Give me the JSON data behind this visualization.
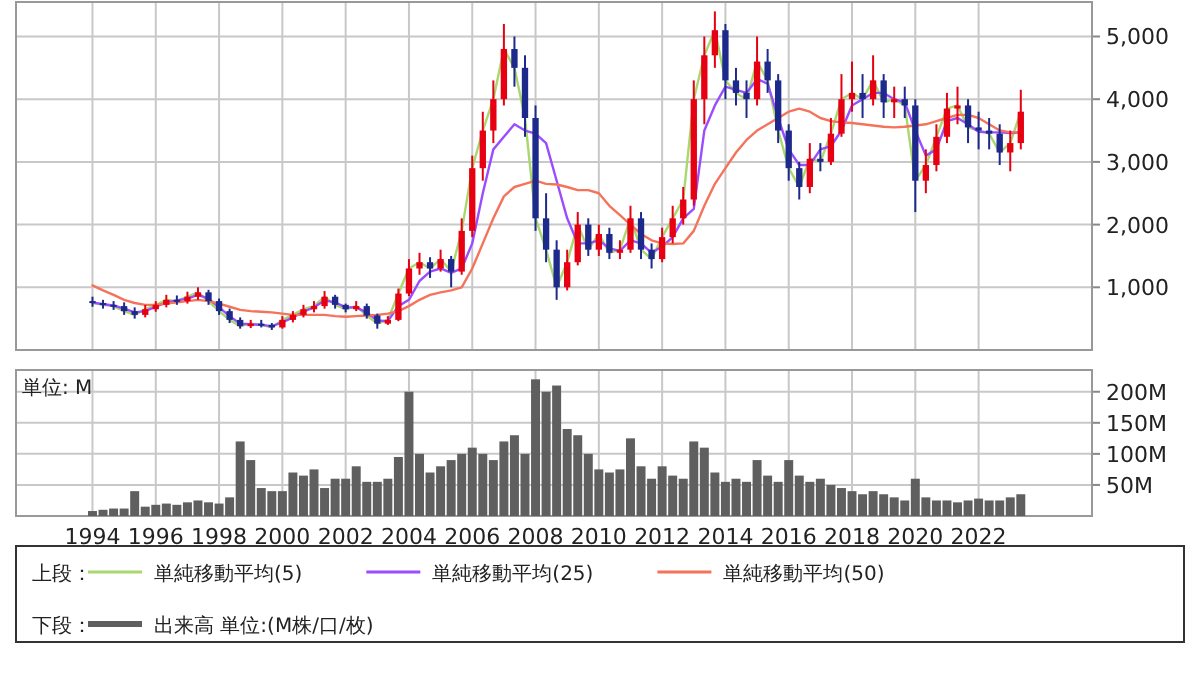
{
  "chart_data": [
    {
      "type": "candlestick",
      "x": [
        "1994-01",
        "1994-05",
        "1994-09",
        "1995-01",
        "1995-05",
        "1995-09",
        "1996-01",
        "1996-05",
        "1996-09",
        "1997-01",
        "1997-05",
        "1997-09",
        "1998-01",
        "1998-05",
        "1998-09",
        "1999-01",
        "1999-05",
        "1999-09",
        "2000-01",
        "2000-05",
        "2000-09",
        "2001-01",
        "2001-05",
        "2001-09",
        "2002-01",
        "2002-05",
        "2002-09",
        "2003-01",
        "2003-05",
        "2003-09",
        "2004-01",
        "2004-05",
        "2004-09",
        "2005-01",
        "2005-05",
        "2005-09",
        "2006-01",
        "2006-05",
        "2006-09",
        "2007-01",
        "2007-05",
        "2007-09",
        "2008-01",
        "2008-05",
        "2008-09",
        "2009-01",
        "2009-05",
        "2009-09",
        "2010-01",
        "2010-05",
        "2010-09",
        "2011-01",
        "2011-05",
        "2011-09",
        "2012-01",
        "2012-05",
        "2012-09",
        "2013-01",
        "2013-05",
        "2013-09",
        "2014-01",
        "2014-05",
        "2014-09",
        "2015-01",
        "2015-05",
        "2015-09",
        "2016-01",
        "2016-05",
        "2016-09",
        "2017-01",
        "2017-05",
        "2017-09",
        "2018-01",
        "2018-05",
        "2018-09",
        "2019-01",
        "2019-05",
        "2019-09",
        "2020-01",
        "2020-05",
        "2020-09",
        "2021-01",
        "2021-05",
        "2021-09",
        "2022-01",
        "2022-05",
        "2022-09",
        "2023-01",
        "2023-05"
      ],
      "ohlc": [
        [
          780,
          850,
          690,
          750
        ],
        [
          750,
          800,
          660,
          720
        ],
        [
          720,
          780,
          640,
          700
        ],
        [
          700,
          760,
          560,
          620
        ],
        [
          620,
          680,
          500,
          560
        ],
        [
          560,
          720,
          520,
          650
        ],
        [
          650,
          780,
          610,
          720
        ],
        [
          720,
          880,
          680,
          800
        ],
        [
          800,
          870,
          720,
          780
        ],
        [
          780,
          930,
          740,
          850
        ],
        [
          850,
          1000,
          800,
          920
        ],
        [
          920,
          960,
          720,
          780
        ],
        [
          780,
          820,
          560,
          620
        ],
        [
          620,
          660,
          430,
          480
        ],
        [
          480,
          520,
          340,
          380
        ],
        [
          380,
          480,
          350,
          420
        ],
        [
          420,
          480,
          360,
          400
        ],
        [
          400,
          430,
          320,
          360
        ],
        [
          360,
          540,
          340,
          480
        ],
        [
          480,
          620,
          440,
          560
        ],
        [
          560,
          720,
          520,
          650
        ],
        [
          650,
          780,
          600,
          700
        ],
        [
          700,
          940,
          660,
          850
        ],
        [
          850,
          880,
          660,
          720
        ],
        [
          720,
          740,
          600,
          650
        ],
        [
          650,
          780,
          620,
          700
        ],
        [
          700,
          740,
          500,
          550
        ],
        [
          550,
          580,
          340,
          420
        ],
        [
          420,
          540,
          400,
          480
        ],
        [
          480,
          980,
          460,
          900
        ],
        [
          900,
          1450,
          860,
          1300
        ],
        [
          1300,
          1550,
          1200,
          1400
        ],
        [
          1400,
          1480,
          1150,
          1300
        ],
        [
          1300,
          1600,
          1250,
          1450
        ],
        [
          1450,
          1500,
          1000,
          1250
        ],
        [
          1250,
          2100,
          1200,
          1900
        ],
        [
          1900,
          3100,
          1800,
          2900
        ],
        [
          2900,
          3800,
          2700,
          3500
        ],
        [
          3500,
          4300,
          3300,
          4000
        ],
        [
          4000,
          5200,
          3900,
          4800
        ],
        [
          4800,
          5000,
          4200,
          4500
        ],
        [
          4500,
          4700,
          3400,
          3700
        ],
        [
          3700,
          3900,
          1900,
          2100
        ],
        [
          2100,
          2500,
          1400,
          1600
        ],
        [
          1600,
          1750,
          800,
          1000
        ],
        [
          1000,
          1600,
          950,
          1400
        ],
        [
          1400,
          2200,
          1350,
          2000
        ],
        [
          2000,
          2100,
          1500,
          1600
        ],
        [
          1600,
          2000,
          1500,
          1850
        ],
        [
          1850,
          1950,
          1450,
          1550
        ],
        [
          1550,
          1750,
          1450,
          1600
        ],
        [
          1600,
          2300,
          1550,
          2100
        ],
        [
          2100,
          2200,
          1450,
          1600
        ],
        [
          1600,
          1700,
          1300,
          1450
        ],
        [
          1450,
          1950,
          1400,
          1800
        ],
        [
          1800,
          2300,
          1700,
          2100
        ],
        [
          2100,
          2600,
          2000,
          2400
        ],
        [
          2400,
          4300,
          2300,
          4000
        ],
        [
          4000,
          5000,
          3600,
          4700
        ],
        [
          4700,
          5400,
          4500,
          5100
        ],
        [
          5100,
          5200,
          4000,
          4300
        ],
        [
          4300,
          4500,
          3900,
          4100
        ],
        [
          4100,
          4300,
          3700,
          4000
        ],
        [
          4000,
          5000,
          3900,
          4600
        ],
        [
          4600,
          4800,
          4100,
          4300
        ],
        [
          4300,
          4400,
          3300,
          3500
        ],
        [
          3500,
          3600,
          2700,
          2900
        ],
        [
          2900,
          3000,
          2400,
          2600
        ],
        [
          2600,
          3300,
          2500,
          3050
        ],
        [
          3050,
          3300,
          2850,
          3000
        ],
        [
          3000,
          3700,
          2950,
          3450
        ],
        [
          3450,
          4400,
          3400,
          4000
        ],
        [
          4000,
          4600,
          3800,
          4100
        ],
        [
          4100,
          4400,
          3700,
          4000
        ],
        [
          4000,
          4700,
          3900,
          4300
        ],
        [
          4300,
          4400,
          3700,
          3950
        ],
        [
          3950,
          4200,
          3700,
          4000
        ],
        [
          4000,
          4200,
          3700,
          3900
        ],
        [
          3900,
          4000,
          2200,
          2700
        ],
        [
          2700,
          3200,
          2500,
          2950
        ],
        [
          2950,
          3600,
          2850,
          3400
        ],
        [
          3400,
          4100,
          3300,
          3850
        ],
        [
          3850,
          4200,
          3600,
          3900
        ],
        [
          3900,
          4000,
          3300,
          3550
        ],
        [
          3550,
          3800,
          3200,
          3500
        ],
        [
          3500,
          3700,
          3200,
          3450
        ],
        [
          3450,
          3600,
          2950,
          3150
        ],
        [
          3150,
          3500,
          2850,
          3300
        ],
        [
          3300,
          4150,
          3200,
          3800
        ]
      ],
      "series": [
        {
          "type": "line",
          "name": "単純移動平均(5)",
          "color": "#a8d86e",
          "values": [
            750,
            720,
            700,
            620,
            560,
            650,
            720,
            800,
            780,
            850,
            920,
            780,
            620,
            480,
            380,
            420,
            400,
            360,
            480,
            560,
            650,
            700,
            850,
            720,
            650,
            700,
            550,
            420,
            480,
            900,
            1300,
            1400,
            1300,
            1450,
            1250,
            1900,
            2900,
            3500,
            4000,
            4800,
            4500,
            3700,
            2100,
            1600,
            1000,
            1400,
            2000,
            1600,
            1850,
            1550,
            1600,
            2100,
            1600,
            1450,
            1800,
            2100,
            2400,
            4000,
            4700,
            5100,
            4300,
            4100,
            4000,
            4600,
            4300,
            3500,
            2900,
            2600,
            3050,
            3000,
            3450,
            4000,
            4100,
            4000,
            4300,
            3950,
            4000,
            3900,
            2700,
            2950,
            3400,
            3850,
            3900,
            3550,
            3500,
            3450,
            3150,
            3300,
            3800
          ]
        },
        {
          "type": "line",
          "name": "単純移動平均(25)",
          "color": "#9a4dff",
          "values": [
            760,
            730,
            710,
            660,
            600,
            620,
            690,
            760,
            790,
            820,
            880,
            820,
            680,
            540,
            420,
            410,
            400,
            380,
            440,
            520,
            610,
            680,
            790,
            760,
            680,
            680,
            600,
            470,
            460,
            700,
            800,
            1100,
            1250,
            1300,
            1230,
            1300,
            1700,
            2500,
            3200,
            3400,
            3600,
            3500,
            3450,
            3300,
            2700,
            2100,
            1700,
            1700,
            1750,
            1620,
            1580,
            1750,
            1700,
            1550,
            1650,
            1800,
            2100,
            2250,
            3500,
            3900,
            4200,
            4150,
            4100,
            4320,
            4250,
            3700,
            3200,
            2950,
            2950,
            3200,
            3250,
            3500,
            3900,
            4000,
            4100,
            4100,
            4000,
            3950,
            3500,
            3100,
            3200,
            3650,
            3700,
            3600,
            3480,
            3470,
            3470,
            3460,
            3470
          ]
        },
        {
          "type": "line",
          "name": "単純移動平均(50)",
          "color": "#f4735a",
          "values": [
            1030,
            950,
            880,
            800,
            750,
            720,
            720,
            740,
            760,
            780,
            800,
            780,
            740,
            690,
            640,
            620,
            610,
            600,
            580,
            560,
            560,
            560,
            560,
            540,
            530,
            540,
            550,
            560,
            580,
            620,
            700,
            800,
            880,
            920,
            950,
            1000,
            1300,
            1700,
            2100,
            2450,
            2600,
            2650,
            2700,
            2650,
            2640,
            2600,
            2550,
            2550,
            2500,
            2300,
            2150,
            2000,
            1850,
            1750,
            1700,
            1690,
            1700,
            1900,
            2300,
            2650,
            2900,
            3150,
            3350,
            3500,
            3600,
            3700,
            3800,
            3850,
            3800,
            3700,
            3650,
            3630,
            3620,
            3600,
            3580,
            3560,
            3550,
            3560,
            3580,
            3600,
            3650,
            3700,
            3750,
            3750,
            3700,
            3600,
            3500,
            3470,
            3470
          ]
        }
      ],
      "xlim": [
        "1991-08",
        "2025-08"
      ],
      "xticks": [
        {
          "value": "1994",
          "label": null
        },
        {
          "value": "1996",
          "label": null
        },
        {
          "value": "1998",
          "label": null
        },
        {
          "value": "2000",
          "label": null
        },
        {
          "value": "2002",
          "label": null
        },
        {
          "value": "2004",
          "label": null
        },
        {
          "value": "2006",
          "label": null
        },
        {
          "value": "2008",
          "label": null
        },
        {
          "value": "2010",
          "label": null
        },
        {
          "value": "2012",
          "label": null
        },
        {
          "value": "2014",
          "label": null
        },
        {
          "value": "2016",
          "label": null
        },
        {
          "value": "2018",
          "label": null
        },
        {
          "value": "2020",
          "label": null
        },
        {
          "value": "2022",
          "label": null
        }
      ],
      "ylim": [
        0,
        5550
      ],
      "yticks": [
        {
          "value": 1000,
          "label": "1,000"
        },
        {
          "value": 2000,
          "label": "2,000"
        },
        {
          "value": 3000,
          "label": "3,000"
        },
        {
          "value": 4000,
          "label": "4,000"
        },
        {
          "value": 5000,
          "label": "5,000"
        }
      ],
      "grid": true,
      "tick_labels": "y",
      "legend": "bottom",
      "legend_title": "上段："
    },
    {
      "type": "bar",
      "x": [
        "1994-01",
        "1994-05",
        "1994-09",
        "1995-01",
        "1995-05",
        "1995-09",
        "1996-01",
        "1996-05",
        "1996-09",
        "1997-01",
        "1997-05",
        "1997-09",
        "1998-01",
        "1998-05",
        "1998-09",
        "1999-01",
        "1999-05",
        "1999-09",
        "2000-01",
        "2000-05",
        "2000-09",
        "2001-01",
        "2001-05",
        "2001-09",
        "2002-01",
        "2002-05",
        "2002-09",
        "2003-01",
        "2003-05",
        "2003-09",
        "2004-01",
        "2004-05",
        "2004-09",
        "2005-01",
        "2005-05",
        "2005-09",
        "2006-01",
        "2006-05",
        "2006-09",
        "2007-01",
        "2007-05",
        "2007-09",
        "2008-01",
        "2008-05",
        "2008-09",
        "2009-01",
        "2009-05",
        "2009-09",
        "2010-01",
        "2010-05",
        "2010-09",
        "2011-01",
        "2011-05",
        "2011-09",
        "2012-01",
        "2012-05",
        "2012-09",
        "2013-01",
        "2013-05",
        "2013-09",
        "2014-01",
        "2014-05",
        "2014-09",
        "2015-01",
        "2015-05",
        "2015-09",
        "2016-01",
        "2016-05",
        "2016-09",
        "2017-01",
        "2017-05",
        "2017-09",
        "2018-01",
        "2018-05",
        "2018-09",
        "2019-01",
        "2019-05",
        "2019-09",
        "2020-01",
        "2020-05",
        "2020-09",
        "2021-01",
        "2021-05",
        "2021-09",
        "2022-01",
        "2022-05",
        "2022-09",
        "2023-01",
        "2023-05"
      ],
      "series": [
        {
          "name": "出来高 単位:(M株/口/枚)",
          "color": "#5f5f5f",
          "values": [
            8,
            10,
            12,
            12,
            40,
            15,
            18,
            20,
            18,
            22,
            25,
            22,
            20,
            30,
            120,
            90,
            45,
            40,
            40,
            70,
            65,
            75,
            45,
            60,
            60,
            80,
            55,
            55,
            60,
            95,
            200,
            100,
            70,
            80,
            90,
            100,
            110,
            100,
            90,
            120,
            130,
            100,
            220,
            200,
            210,
            140,
            130,
            100,
            75,
            70,
            75,
            125,
            80,
            60,
            80,
            65,
            60,
            120,
            110,
            70,
            55,
            60,
            55,
            90,
            65,
            55,
            90,
            65,
            55,
            60,
            50,
            45,
            40,
            35,
            40,
            35,
            30,
            25,
            60,
            30,
            25,
            25,
            22,
            25,
            28,
            25,
            25,
            30,
            35
          ]
        }
      ],
      "xlim": [
        "1991-08",
        "2025-08"
      ],
      "xticks": [
        "1994",
        "1996",
        "1998",
        "2000",
        "2002",
        "2004",
        "2006",
        "2008",
        "2010",
        "2012",
        "2014",
        "2016",
        "2018",
        "2020",
        "2022"
      ],
      "ylim": [
        0,
        235
      ],
      "yticks": [
        {
          "value": 50,
          "label": "50M"
        },
        {
          "value": 100,
          "label": "100M"
        },
        {
          "value": 150,
          "label": "150M"
        },
        {
          "value": 200,
          "label": "200M"
        }
      ],
      "ylabel": "単位: M",
      "grid": true,
      "legend": "bottom",
      "legend_title": "下段："
    }
  ]
}
